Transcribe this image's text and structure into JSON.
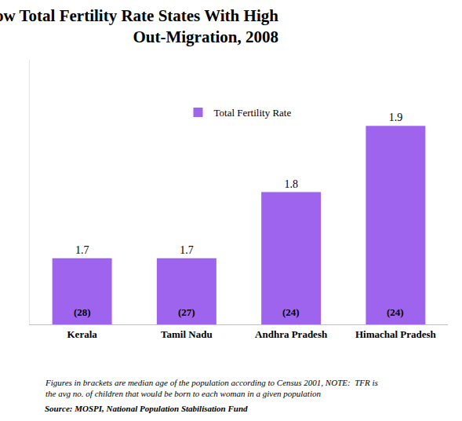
{
  "chart_data": {
    "type": "bar",
    "title": [
      "Low Total Fertility Rate States With High",
      "Out-Migration, 2008"
    ],
    "categories": [
      "Kerala",
      "Tamil Nadu",
      "Andhra Pradesh",
      "Himachal Pradesh"
    ],
    "series": [
      {
        "name": "Total Fertility Rate",
        "color": "#9e64ee",
        "values": [
          1.7,
          1.7,
          1.8,
          1.9
        ]
      }
    ],
    "median_age_labels": [
      "(28)",
      "(27)",
      "(24)",
      "(24)"
    ],
    "ylim": [
      1.6,
      2.0
    ],
    "grid": false,
    "legend": "top",
    "data_labels": true,
    "tick_labels": "x",
    "note": [
      "Figures in brackets are median age of the population according to Census 2001, NOTE:  TFR is",
      "the avg no. of children that would be born to each woman in a given population"
    ],
    "source": "Source: MOSPI, National Population Stabilisation Fund"
  }
}
